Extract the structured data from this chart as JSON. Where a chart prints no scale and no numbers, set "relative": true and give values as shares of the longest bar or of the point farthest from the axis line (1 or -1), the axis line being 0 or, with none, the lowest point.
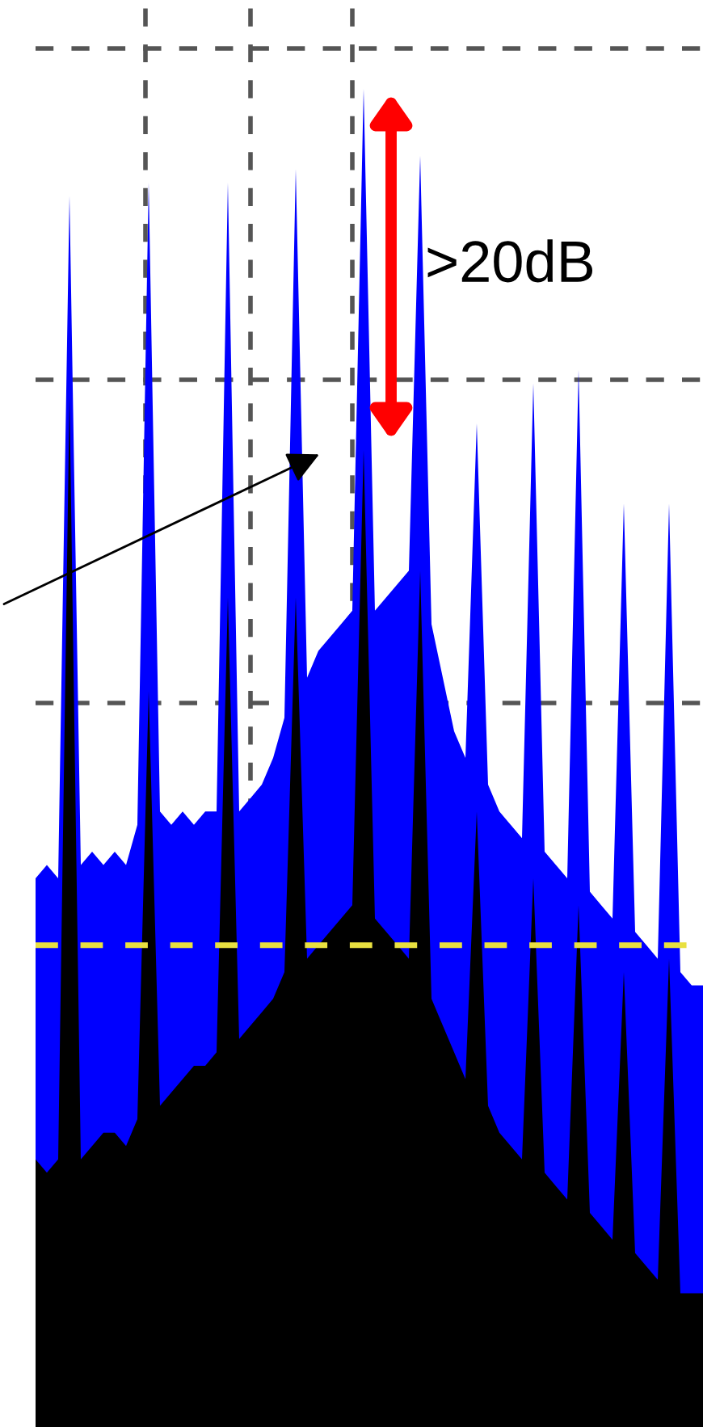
{
  "chart_data": {
    "type": "area",
    "relative": true,
    "grid": true,
    "legend": false,
    "categories": [
      null,
      null,
      null,
      null,
      null,
      null,
      null,
      null,
      null,
      null,
      null,
      null,
      null,
      null,
      null,
      null,
      null,
      null,
      null,
      null,
      null,
      null,
      null,
      null,
      null,
      null,
      null,
      null,
      null,
      null,
      null,
      null,
      null,
      null,
      null,
      null,
      null,
      null,
      null,
      null,
      null,
      null,
      null,
      null,
      null,
      null,
      null,
      null,
      null,
      null,
      null,
      null,
      null,
      null,
      null,
      null,
      null,
      null,
      null,
      null
    ],
    "series": [
      {
        "color": "#0000ff",
        "values": [
          0.41,
          0.42,
          0.41,
          0.92,
          0.42,
          0.43,
          0.42,
          0.43,
          0.42,
          0.45,
          0.93,
          0.46,
          0.45,
          0.46,
          0.45,
          0.46,
          0.46,
          0.93,
          0.46,
          0.47,
          0.48,
          0.5,
          0.53,
          0.94,
          0.56,
          0.58,
          0.59,
          0.6,
          0.61,
          1.0,
          0.61,
          0.62,
          0.63,
          0.64,
          0.95,
          0.6,
          0.56,
          0.52,
          0.5,
          0.75,
          0.48,
          0.46,
          0.45,
          0.44,
          0.78,
          0.43,
          0.42,
          0.41,
          0.79,
          0.4,
          0.39,
          0.38,
          0.69,
          0.37,
          0.36,
          0.35,
          0.69,
          0.34,
          0.33,
          0.33
        ]
      },
      {
        "color": "#000000",
        "values": [
          0.2,
          0.19,
          0.2,
          0.77,
          0.2,
          0.21,
          0.22,
          0.22,
          0.21,
          0.23,
          0.55,
          0.24,
          0.25,
          0.26,
          0.27,
          0.27,
          0.28,
          0.62,
          0.29,
          0.3,
          0.31,
          0.32,
          0.34,
          0.62,
          0.35,
          0.36,
          0.37,
          0.38,
          0.39,
          0.73,
          0.38,
          0.37,
          0.36,
          0.35,
          0.64,
          0.32,
          0.3,
          0.28,
          0.26,
          0.46,
          0.24,
          0.22,
          0.21,
          0.2,
          0.41,
          0.19,
          0.18,
          0.17,
          0.39,
          0.16,
          0.15,
          0.14,
          0.34,
          0.13,
          0.12,
          0.11,
          0.35,
          0.1,
          0.1,
          0.1
        ]
      }
    ],
    "ref_lines": [
      {
        "axis": "y",
        "value": 0.36,
        "color": "#e8e040",
        "line_style": "dashed"
      }
    ],
    "annotations": [
      ">20dB"
    ]
  }
}
